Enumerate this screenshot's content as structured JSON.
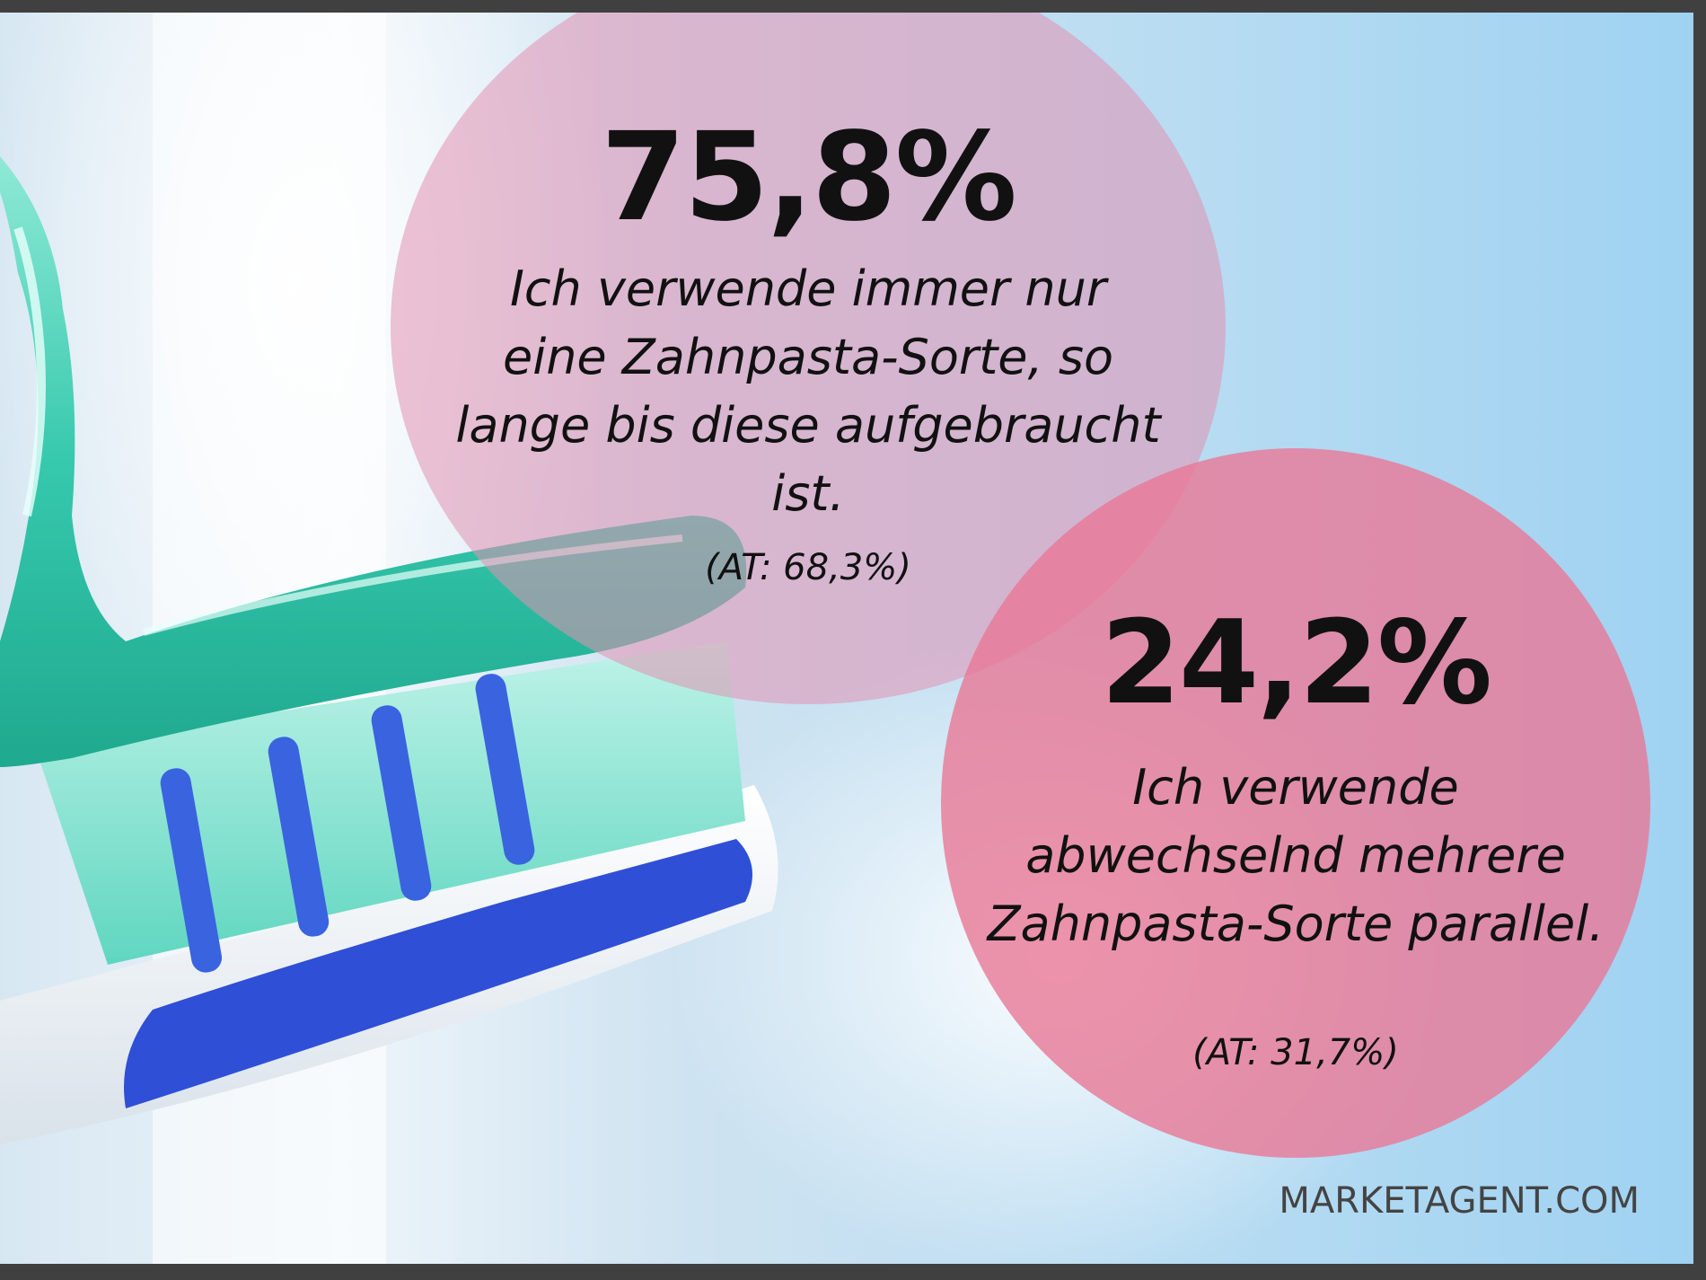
{
  "stat_1": {
    "percent": "75,8%",
    "statement": "Ich verwende immer nur eine Zahnpasta-Sorte, so lange bis diese aufgebraucht ist.",
    "at_value": "(AT: 68,3%)"
  },
  "stat_2": {
    "percent": "24,2%",
    "statement": "Ich verwende abwechselnd mehrere Zahnpasta-Sorte parallel.",
    "at_value": "(AT: 31,7%)"
  },
  "branding": {
    "logo_text": "MARKETAGENT.COM"
  },
  "colors": {
    "bubble_1": "#e291b2",
    "bubble_2": "#e97896",
    "toothpaste": "#3fd1b8",
    "brush_blue": "#2f4fd6"
  }
}
